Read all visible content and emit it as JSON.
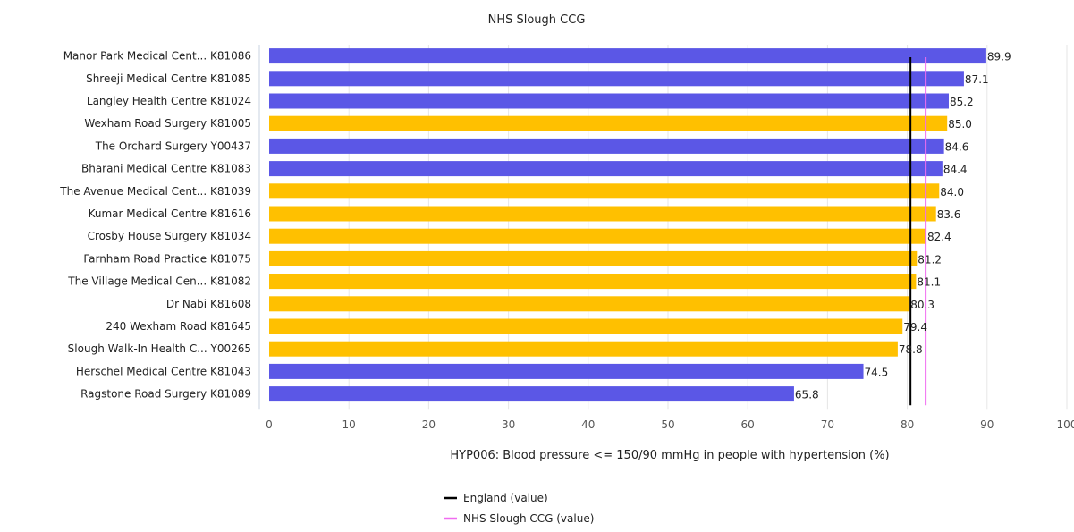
{
  "chart_data": {
    "type": "bar",
    "orientation": "horizontal",
    "title": "NHS Slough CCG",
    "xlabel": "HYP006: Blood pressure <= 150/90 mmHg in people with hypertension (%)",
    "ylabel": "",
    "xlim": [
      0,
      100
    ],
    "x_ticks": [
      "0",
      "10",
      "20",
      "30",
      "40",
      "50",
      "60",
      "70",
      "80",
      "90",
      "100"
    ],
    "grid": "vertical",
    "categories": [
      "Manor Park Medical Cent... K81086",
      "Shreeji Medical Centre K81085",
      "Langley Health Centre K81024",
      "Wexham Road Surgery K81005",
      "The Orchard Surgery Y00437",
      "Bharani Medical Centre K81083",
      "The Avenue Medical Cent... K81039",
      "Kumar Medical Centre K81616",
      "Crosby House Surgery K81034",
      "Farnham Road Practice K81075",
      "The Village Medical Cen... K81082",
      "Dr Nabi K81608",
      "240 Wexham Road K81645",
      "Slough Walk-In Health C... Y00265",
      "Herschel Medical Centre K81043",
      "Ragstone Road Surgery K81089"
    ],
    "values": [
      89.9,
      87.1,
      85.2,
      85.0,
      84.6,
      84.4,
      84.0,
      83.6,
      82.4,
      81.2,
      81.1,
      80.3,
      79.4,
      78.8,
      74.5,
      65.8
    ],
    "value_labels": [
      "89.9",
      "87.1",
      "85.2",
      "85.0",
      "84.6",
      "84.4",
      "84.0",
      "83.6",
      "82.4",
      "81.2",
      "81.1",
      "80.3",
      "79.4",
      "78.8",
      "74.5",
      "65.8"
    ],
    "bar_colors": [
      "#5b57e6",
      "#5b57e6",
      "#5b57e6",
      "#ffc000",
      "#5b57e6",
      "#5b57e6",
      "#ffc000",
      "#ffc000",
      "#ffc000",
      "#ffc000",
      "#ffc000",
      "#ffc000",
      "#ffc000",
      "#ffc000",
      "#5b57e6",
      "#5b57e6"
    ],
    "reference_lines": [
      {
        "name": "England (value)",
        "value": 80.4,
        "color": "#000000"
      },
      {
        "name": "NHS Slough CCG (value)",
        "value": 82.3,
        "color": "#f06cf0"
      }
    ],
    "legend_position": "bottom-center"
  }
}
